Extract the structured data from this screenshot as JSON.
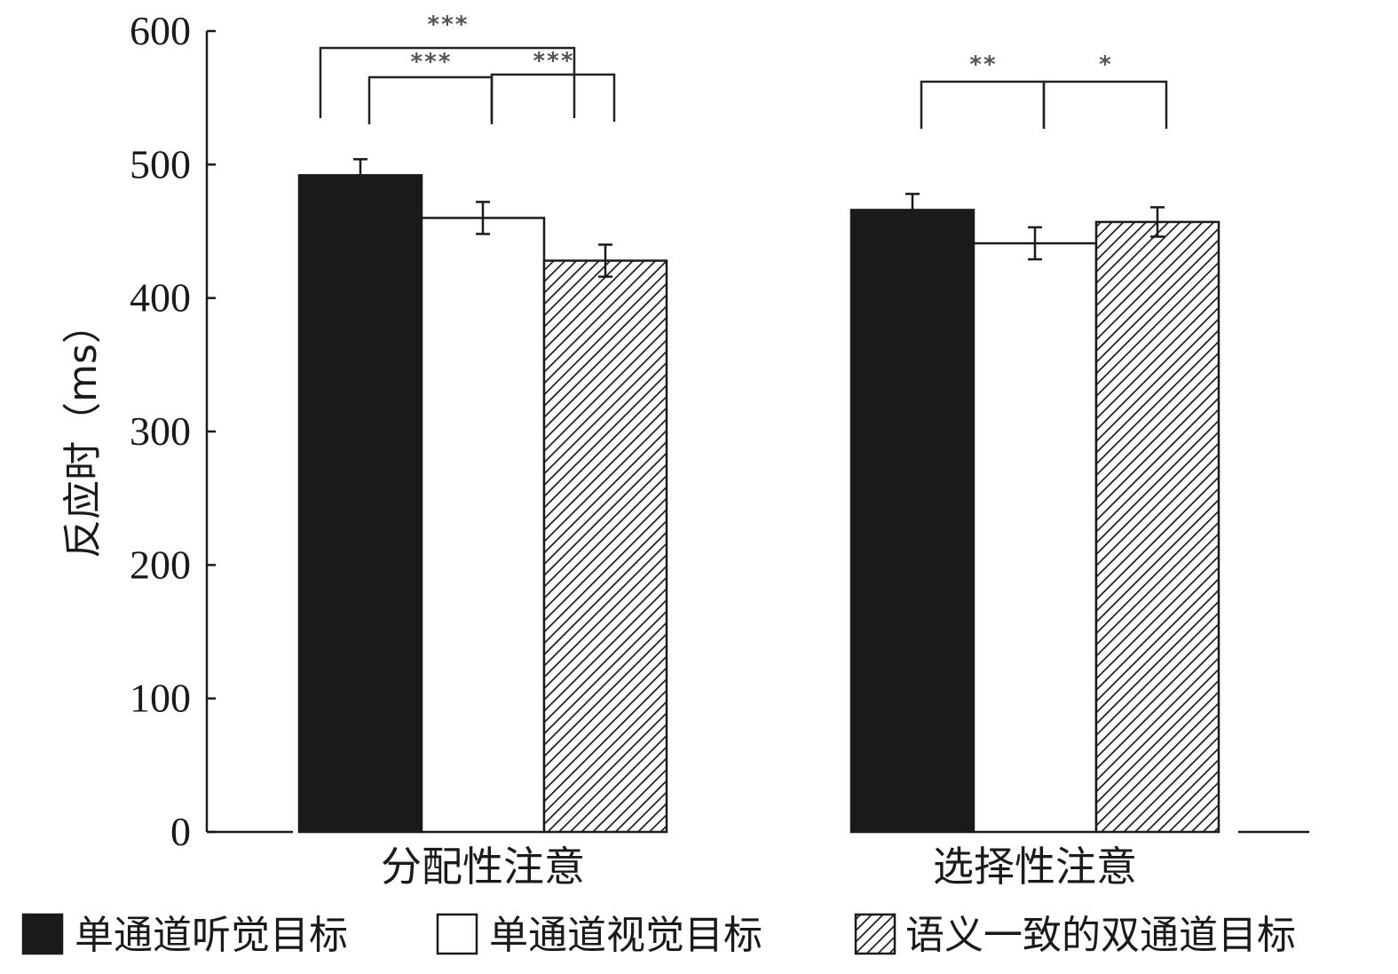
{
  "chart_data": {
    "type": "bar",
    "ylabel": "反应时（ms）",
    "ylim": [
      0,
      600
    ],
    "yticks": [
      0,
      100,
      200,
      300,
      400,
      500,
      600
    ],
    "grid": false,
    "legend_placement": "bottom",
    "categories": [
      "分配性注意",
      "选择性注意"
    ],
    "series": [
      {
        "name": "单通道听觉目标",
        "pattern": "solid",
        "color": "#1a1a1a",
        "values": [
          492,
          466
        ],
        "errors": [
          12,
          12
        ]
      },
      {
        "name": "单通道视觉目标",
        "pattern": "open",
        "color": "#ffffff",
        "values": [
          460,
          441
        ],
        "errors": [
          12,
          12
        ]
      },
      {
        "name": "语义一致的双通道目标",
        "pattern": "hatched",
        "color": "#1a1a1a",
        "values": [
          428,
          457
        ],
        "errors": [
          12,
          11
        ]
      }
    ],
    "significance": [
      {
        "category": 0,
        "from_series": 0,
        "to_series": 2,
        "label": "***"
      },
      {
        "category": 0,
        "from_series": 0,
        "to_series": 1,
        "label": "***"
      },
      {
        "category": 0,
        "from_series": 1,
        "to_series": 2,
        "label": "***"
      },
      {
        "category": 1,
        "from_series": 0,
        "to_series": 1,
        "label": "**"
      },
      {
        "category": 1,
        "from_series": 1,
        "to_series": 2,
        "label": "*"
      }
    ]
  }
}
